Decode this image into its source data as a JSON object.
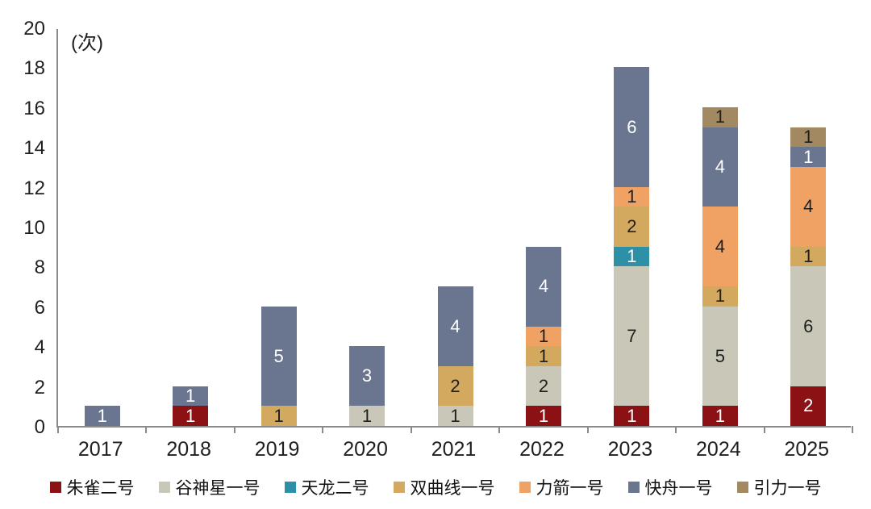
{
  "page": {
    "background": "#ffffff",
    "axis_color": "#8a8a8a",
    "text_color": "#1f1f1f"
  },
  "chart_data": {
    "type": "bar",
    "stacked": true,
    "title": "",
    "unit_label": "(次)",
    "categories": [
      "2017",
      "2018",
      "2019",
      "2020",
      "2021",
      "2022",
      "2023",
      "2024",
      "2025"
    ],
    "series": [
      {
        "name": "朱雀二号",
        "color": "#8C1114",
        "label_color": "#ffffff",
        "values": [
          0,
          1,
          0,
          0,
          0,
          1,
          1,
          1,
          2
        ]
      },
      {
        "name": "谷神星一号",
        "color": "#C9C8B8",
        "label_color": "#1f1f1f",
        "values": [
          0,
          0,
          0,
          1,
          1,
          2,
          7,
          5,
          6
        ]
      },
      {
        "name": "天龙二号",
        "color": "#2E90A6",
        "label_color": "#ffffff",
        "values": [
          0,
          0,
          0,
          0,
          0,
          0,
          1,
          0,
          0
        ]
      },
      {
        "name": "双曲线一号",
        "color": "#D2A95F",
        "label_color": "#1f1f1f",
        "values": [
          0,
          0,
          1,
          0,
          2,
          1,
          2,
          1,
          1
        ]
      },
      {
        "name": "力箭一号",
        "color": "#F0A265",
        "label_color": "#1f1f1f",
        "values": [
          0,
          0,
          0,
          0,
          0,
          1,
          1,
          4,
          4
        ]
      },
      {
        "name": "快舟一号",
        "color": "#6A7590",
        "label_color": "#ffffff",
        "values": [
          1,
          1,
          5,
          3,
          4,
          4,
          6,
          4,
          1
        ]
      },
      {
        "name": "引力一号",
        "color": "#A38962",
        "label_color": "#1f1f1f",
        "values": [
          0,
          0,
          0,
          0,
          0,
          0,
          0,
          1,
          1
        ]
      }
    ],
    "totals": [
      1,
      2,
      6,
      4,
      7,
      9,
      18,
      16,
      15
    ],
    "ylim": [
      0,
      20
    ],
    "yticks": [
      0,
      2,
      4,
      6,
      8,
      10,
      12,
      14,
      16,
      18,
      20
    ],
    "grid": false,
    "legend_position": "bottom"
  }
}
